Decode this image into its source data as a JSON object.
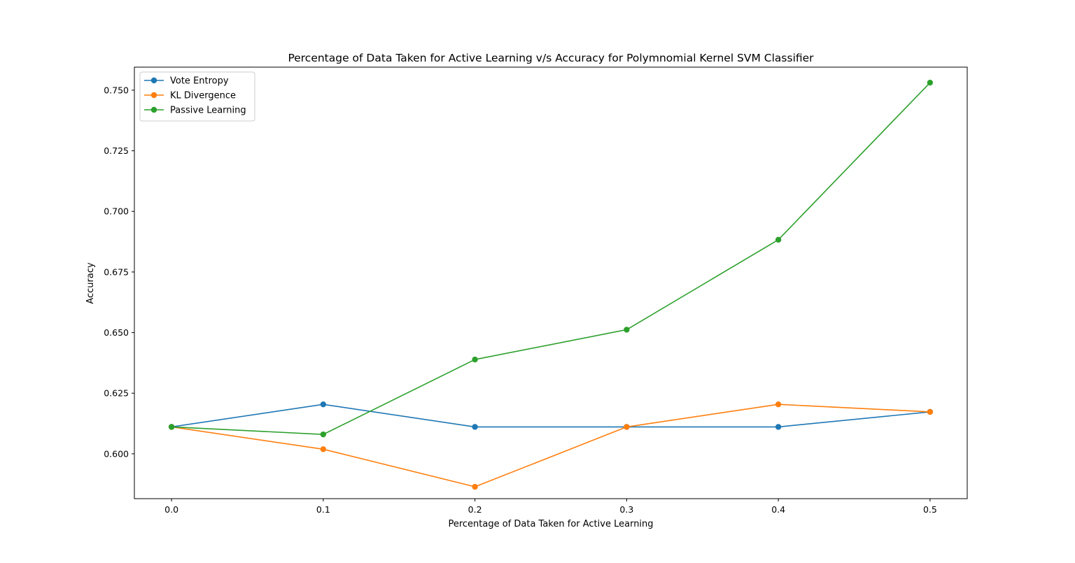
{
  "chart_data": {
    "type": "line",
    "title": "Percentage of Data Taken for Active Learning v/s Accuracy for Polymnomial Kernel SVM Classifier",
    "xlabel": "Percentage of Data Taken for Active Learning",
    "ylabel": "Accuracy",
    "x": [
      0.0,
      0.1,
      0.2,
      0.3,
      0.4,
      0.5
    ],
    "xlim": [
      -0.0245,
      0.5245
    ],
    "ylim": [
      0.5815,
      0.7595
    ],
    "xticks": [
      "0.0",
      "0.1",
      "0.2",
      "0.3",
      "0.4",
      "0.5"
    ],
    "yticks": [
      "0.600",
      "0.625",
      "0.650",
      "0.675",
      "0.700",
      "0.725",
      "0.750"
    ],
    "grid": false,
    "legend_position": "top-left",
    "series": [
      {
        "name": "Vote Entropy",
        "color": "#1f77b4",
        "values": [
          0.6111,
          0.6204,
          0.6111,
          0.6111,
          0.6111,
          0.6173
        ]
      },
      {
        "name": "KL Divergence",
        "color": "#ff7f0e",
        "values": [
          0.6111,
          0.6019,
          0.5864,
          0.6111,
          0.6204,
          0.6173
        ]
      },
      {
        "name": "Passive Learning",
        "color": "#2ca02c",
        "values": [
          0.6111,
          0.608,
          0.6389,
          0.6512,
          0.6883,
          0.7531
        ]
      }
    ]
  }
}
